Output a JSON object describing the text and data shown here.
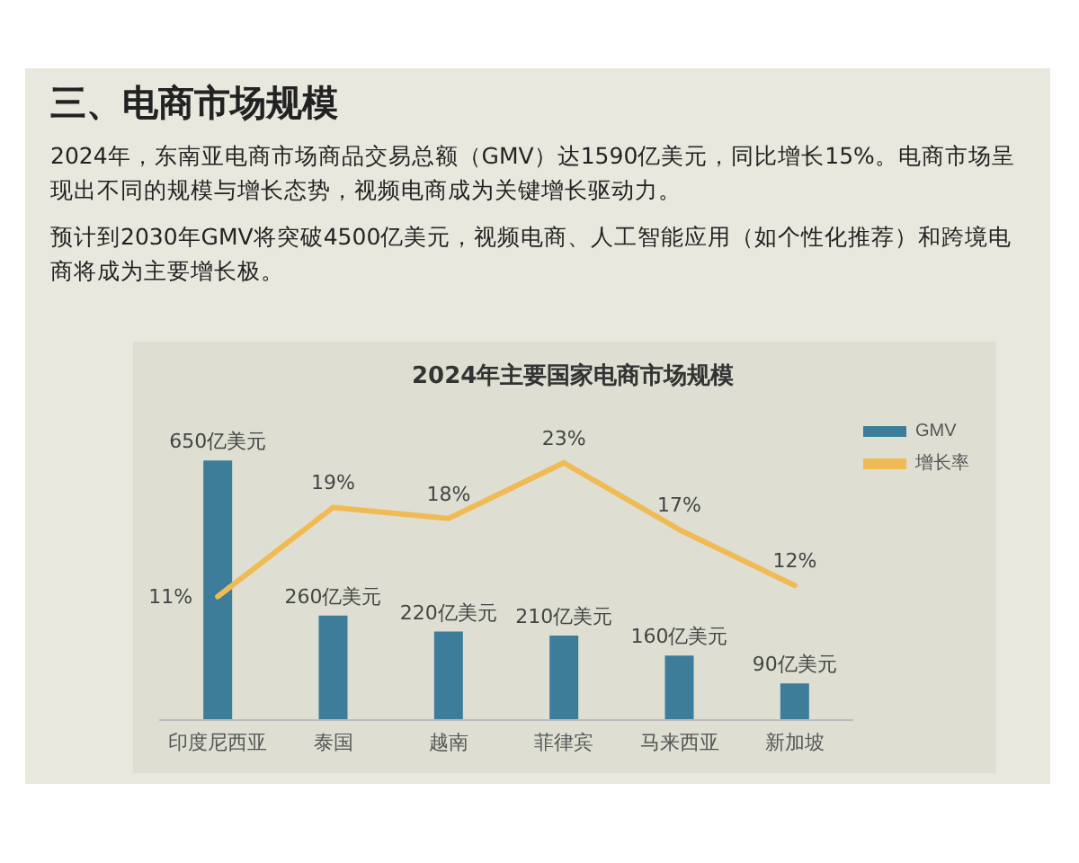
{
  "chart_data": {
    "type": "bar",
    "title": "2024年主要国家电商市场规模",
    "annotations": [
      "三、电商市场规模",
      "2024年，东南亚电商市场商品交易总额（GMV）达1590亿美元，同比增长15%。电商市场呈现出不同的规模与增长态势，视频电商成为关键增长驱动力。",
      "预计到2030年GMV将突破4500亿美元，视频电商、人工智能应用（如个性化推荐）和跨境电商将成为主要增长极。"
    ],
    "categories": [
      "印度尼西亚",
      "泰国",
      "越南",
      "菲律宾",
      "马来西亚",
      "新加坡"
    ],
    "tick_labels": false,
    "series": [
      {
        "name": "GMV",
        "color": "#3d7d99",
        "values": [
          650,
          260,
          220,
          210,
          160,
          90
        ],
        "value_labels": [
          "650亿美元",
          "260亿美元",
          "220亿美元",
          "210亿美元",
          "160亿美元",
          "90亿美元"
        ]
      },
      {
        "name": "增长率",
        "type": "line",
        "axis": "y2",
        "color": "#f0bb55",
        "values": [
          11,
          19,
          18,
          23,
          17,
          12
        ],
        "value_labels": [
          "11%",
          "19%",
          "18%",
          "23%",
          "17%",
          "12%"
        ]
      }
    ],
    "legend": "top right",
    "marker": "none"
  }
}
